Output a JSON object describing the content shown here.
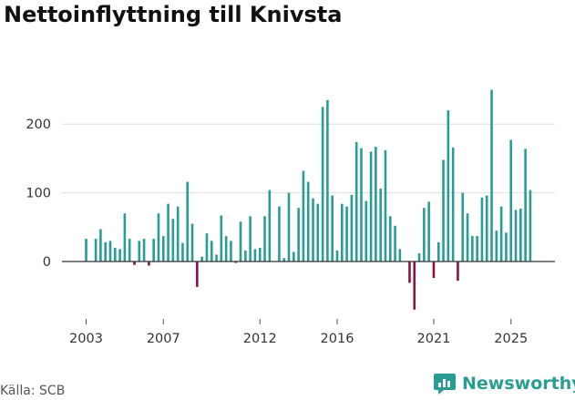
{
  "header": {
    "title": "Nettoinflyttning till Knivsta"
  },
  "footer": {
    "source": "Källa: SCB",
    "brand": "Newsworthy"
  },
  "colors": {
    "positive": "#2a9d92",
    "negative": "#8b1446",
    "grid": "#dddddd",
    "baseline": "#333333"
  },
  "chart_data": {
    "type": "bar",
    "title": "Nettoinflyttning till Knivsta",
    "xlabel": "",
    "ylabel": "",
    "ylim": [
      -70,
      265
    ],
    "yticks": [
      0,
      100,
      200
    ],
    "xticks": [
      {
        "label": "2003",
        "index": 0
      },
      {
        "label": "2007",
        "index": 16
      },
      {
        "label": "2012",
        "index": 36
      },
      {
        "label": "2016",
        "index": 52
      },
      {
        "label": "2021",
        "index": 72
      },
      {
        "label": "2025",
        "index": 88
      }
    ],
    "frequency": "quarterly",
    "start": "2003 Q1",
    "values": [
      33,
      0,
      33,
      47,
      28,
      30,
      20,
      18,
      70,
      33,
      -5,
      30,
      33,
      -6,
      33,
      70,
      37,
      84,
      62,
      80,
      27,
      116,
      55,
      -37,
      7,
      41,
      30,
      10,
      67,
      37,
      30,
      -2,
      58,
      16,
      66,
      18,
      20,
      66,
      104,
      0,
      80,
      5,
      100,
      14,
      78,
      132,
      116,
      92,
      84,
      225,
      235,
      96,
      16,
      84,
      80,
      97,
      174,
      165,
      88,
      160,
      167,
      106,
      162,
      66,
      52,
      18,
      0,
      -31,
      -70,
      12,
      78,
      87,
      -24,
      28,
      148,
      220,
      166,
      -28,
      100,
      70,
      37,
      37,
      93,
      96,
      250,
      45,
      80,
      42,
      177,
      75,
      77,
      164,
      104
    ]
  }
}
